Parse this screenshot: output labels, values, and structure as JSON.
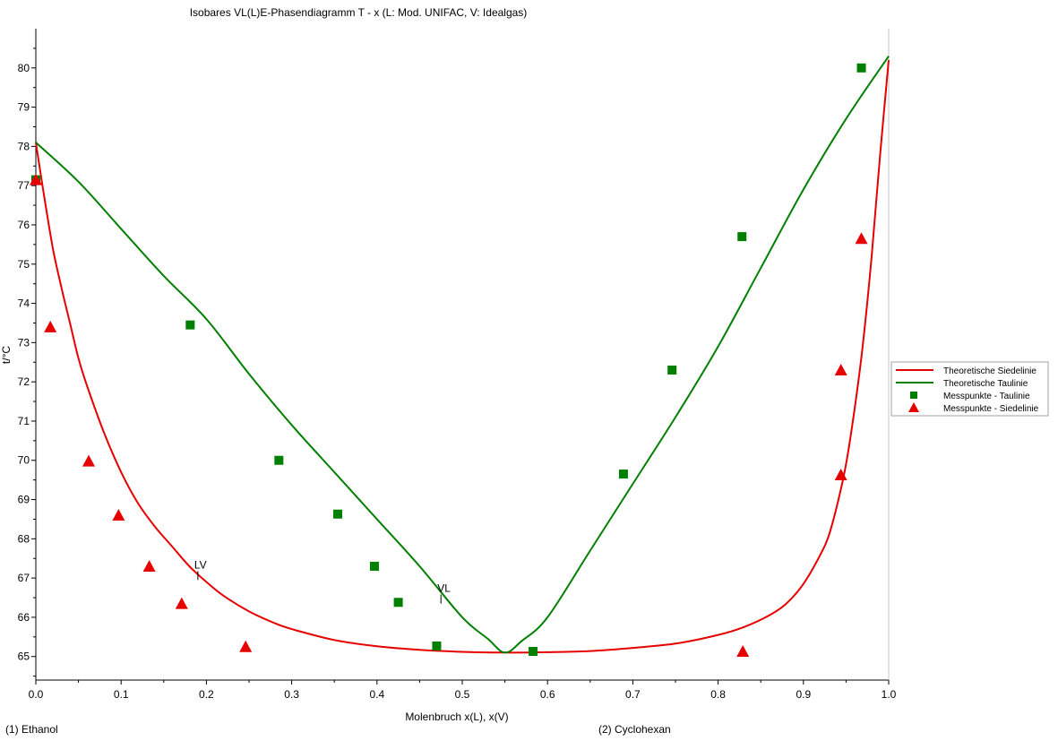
{
  "chart_data": {
    "type": "line",
    "title": "Isobares VL(L)E-Phasendiagramm T - x  (L: Mod. UNIFAC, V: Idealgas)",
    "xlabel": "Molenbruch x(L), x(V)",
    "ylabel": "t/°C",
    "xlim": [
      0,
      1
    ],
    "ylim": [
      64.4,
      81
    ],
    "x_ticks": [
      "0.0",
      "0.1",
      "0.2",
      "0.3",
      "0.4",
      "0.5",
      "0.6",
      "0.7",
      "0.8",
      "0.9",
      "1.0"
    ],
    "y_ticks": [
      "65",
      "66",
      "67",
      "68",
      "69",
      "70",
      "71",
      "72",
      "73",
      "74",
      "75",
      "76",
      "77",
      "78",
      "79",
      "80"
    ],
    "component_left": "(1) Ethanol",
    "component_right": "(2) Cyclohexan",
    "legend_position": "right",
    "series": [
      {
        "name": "Theoretische Siedelinie",
        "kind": "line",
        "color": "#e60000",
        "points": [
          [
            0,
            78.1
          ],
          [
            0.01,
            76.7
          ],
          [
            0.02,
            75.4
          ],
          [
            0.03,
            74.4
          ],
          [
            0.04,
            73.5
          ],
          [
            0.05,
            72.6
          ],
          [
            0.06,
            71.9
          ],
          [
            0.08,
            70.7
          ],
          [
            0.1,
            69.7
          ],
          [
            0.12,
            68.9
          ],
          [
            0.14,
            68.3
          ],
          [
            0.16,
            67.8
          ],
          [
            0.18,
            67.3
          ],
          [
            0.2,
            66.9
          ],
          [
            0.22,
            66.55
          ],
          [
            0.25,
            66.15
          ],
          [
            0.28,
            65.85
          ],
          [
            0.3,
            65.7
          ],
          [
            0.35,
            65.42
          ],
          [
            0.4,
            65.26
          ],
          [
            0.45,
            65.17
          ],
          [
            0.5,
            65.12
          ],
          [
            0.55,
            65.1
          ],
          [
            0.6,
            65.11
          ],
          [
            0.65,
            65.14
          ],
          [
            0.7,
            65.22
          ],
          [
            0.75,
            65.33
          ],
          [
            0.8,
            65.55
          ],
          [
            0.83,
            65.75
          ],
          [
            0.86,
            66.05
          ],
          [
            0.88,
            66.35
          ],
          [
            0.9,
            66.85
          ],
          [
            0.92,
            67.6
          ],
          [
            0.93,
            68.1
          ],
          [
            0.94,
            68.9
          ],
          [
            0.95,
            69.9
          ],
          [
            0.96,
            71.3
          ],
          [
            0.97,
            73.0
          ],
          [
            0.98,
            75.2
          ],
          [
            0.99,
            77.8
          ],
          [
            1.0,
            80.2
          ]
        ]
      },
      {
        "name": "Theoretische Taulinie",
        "kind": "line",
        "color": "#008000",
        "points": [
          [
            0,
            78.1
          ],
          [
            0.05,
            77.1
          ],
          [
            0.1,
            75.9
          ],
          [
            0.15,
            74.7
          ],
          [
            0.2,
            73.6
          ],
          [
            0.25,
            72.2
          ],
          [
            0.3,
            70.9
          ],
          [
            0.35,
            69.7
          ],
          [
            0.4,
            68.5
          ],
          [
            0.45,
            67.3
          ],
          [
            0.5,
            66.0
          ],
          [
            0.53,
            65.45
          ],
          [
            0.55,
            65.1
          ],
          [
            0.57,
            65.4
          ],
          [
            0.6,
            66.0
          ],
          [
            0.65,
            67.7
          ],
          [
            0.7,
            69.4
          ],
          [
            0.75,
            71.1
          ],
          [
            0.8,
            72.9
          ],
          [
            0.85,
            74.9
          ],
          [
            0.9,
            76.9
          ],
          [
            0.95,
            78.7
          ],
          [
            1.0,
            80.3
          ]
        ]
      },
      {
        "name": "Messpunkte - Taulinie",
        "kind": "marker-square",
        "color": "#008000",
        "points": [
          [
            0,
            77.15
          ],
          [
            0.181,
            73.45
          ],
          [
            0.285,
            70.0
          ],
          [
            0.354,
            68.63
          ],
          [
            0.397,
            67.3
          ],
          [
            0.425,
            66.38
          ],
          [
            0.47,
            65.27
          ],
          [
            0.583,
            65.13
          ],
          [
            0.689,
            69.65
          ],
          [
            0.746,
            72.3
          ],
          [
            0.828,
            75.7
          ],
          [
            0.968,
            80.0
          ]
        ]
      },
      {
        "name": "Messpunkte - Siedelinie",
        "kind": "marker-triangle",
        "color": "#e60000",
        "points": [
          [
            0,
            77.15
          ],
          [
            0.017,
            73.4
          ],
          [
            0.062,
            69.98
          ],
          [
            0.097,
            68.6
          ],
          [
            0.133,
            67.3
          ],
          [
            0.171,
            66.35
          ],
          [
            0.246,
            65.25
          ],
          [
            0.829,
            65.13
          ],
          [
            0.944,
            69.63
          ],
          [
            0.944,
            72.3
          ],
          [
            0.968,
            75.65
          ]
        ]
      }
    ],
    "annotations": [
      {
        "text": "LV",
        "x": 0.19,
        "y": 66.95
      },
      {
        "text": "VL",
        "x": 0.475,
        "y": 66.35
      }
    ]
  }
}
